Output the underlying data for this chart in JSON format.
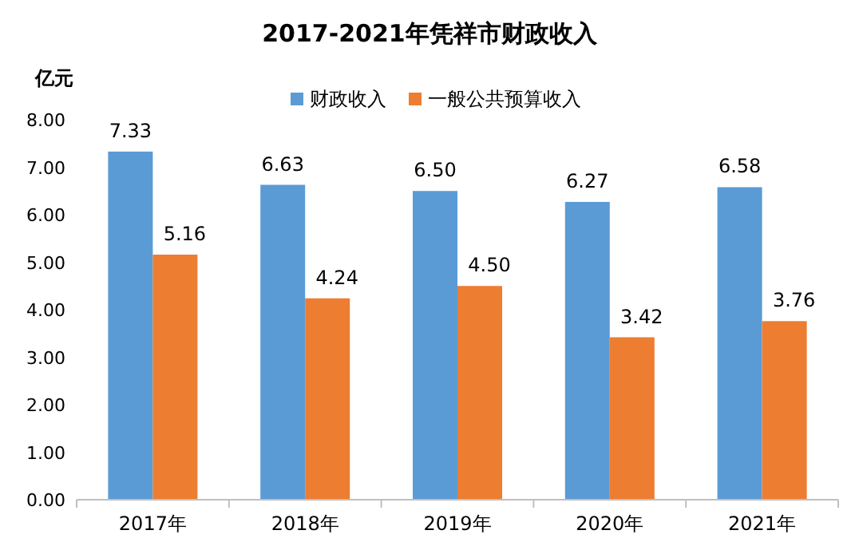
{
  "chart_data": {
    "type": "bar",
    "title": "2017-2021年凭祥市财政收入",
    "ylabel": "亿元",
    "categories": [
      "2017年",
      "2018年",
      "2019年",
      "2020年",
      "2021年"
    ],
    "series": [
      {
        "name": "财政收入",
        "color": "#5b9bd5",
        "values": [
          7.33,
          6.63,
          6.5,
          6.27,
          6.58
        ],
        "value_labels": [
          "7.33",
          "6.63",
          "6.50",
          "6.27",
          "6.58"
        ]
      },
      {
        "name": "一般公共预算收入",
        "color": "#ed7d31",
        "values": [
          5.16,
          4.24,
          4.5,
          3.42,
          3.76
        ],
        "value_labels": [
          "5.16",
          "4.24",
          "4.50",
          "3.42",
          "3.76"
        ]
      }
    ],
    "ylim": [
      0,
      8
    ],
    "yticks": [
      {
        "value": 0,
        "label": "0.00"
      },
      {
        "value": 1,
        "label": "1.00"
      },
      {
        "value": 2,
        "label": "2.00"
      },
      {
        "value": 3,
        "label": "3.00"
      },
      {
        "value": 4,
        "label": "4.00"
      },
      {
        "value": 5,
        "label": "5.00"
      },
      {
        "value": 6,
        "label": "6.00"
      },
      {
        "value": 7,
        "label": "7.00"
      },
      {
        "value": 8,
        "label": "8.00"
      }
    ],
    "legend": "top"
  }
}
